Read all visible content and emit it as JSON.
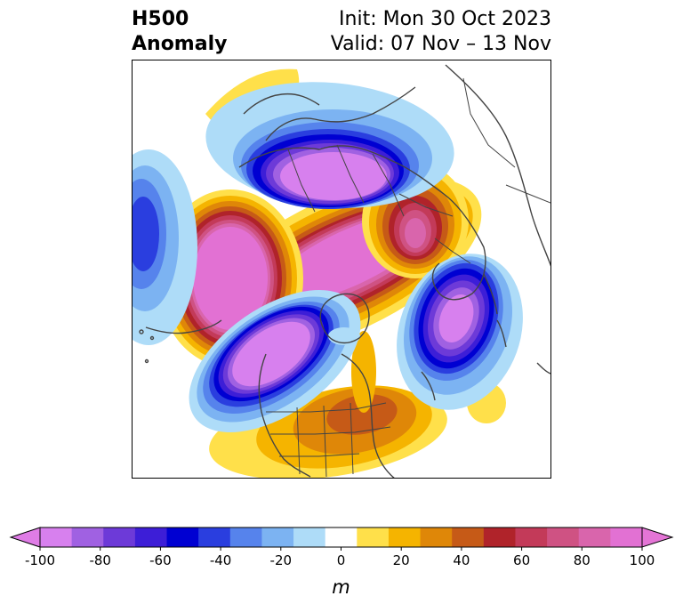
{
  "title": {
    "line1": "H500",
    "line2": "Anomaly",
    "init": "Init: Mon 30 Oct 2023",
    "valid": "Valid: 07 Nov – 13 Nov"
  },
  "colorbar": {
    "units": "m",
    "ticks": [
      "-100",
      "-80",
      "-60",
      "-40",
      "-20",
      "0",
      "20",
      "40",
      "60",
      "80",
      "100"
    ],
    "colors": [
      "#d780ee",
      "#a061e2",
      "#6d3ad8",
      "#3d1ed7",
      "#0000d2",
      "#2a3edf",
      "#5683ec",
      "#7cb3f2",
      "#aedcf8",
      "#ffffff",
      "#ffe04a",
      "#f5b400",
      "#df8708",
      "#c65a17",
      "#b0232a",
      "#c33a59",
      "#cf5283",
      "#d965ac",
      "#e271d3"
    ],
    "lower_extend_color": "#df7ce6",
    "upper_extend_color": "#e475d6"
  },
  "anomaly_centers": [
    {
      "region": "Central Arctic / Siberia",
      "sign": "positive",
      "peak_m": 100
    },
    {
      "region": "Northeast Pacific / Aleutians",
      "sign": "positive",
      "peak_m": 100
    },
    {
      "region": "Northern Europe / Scandinavia",
      "sign": "negative",
      "peak_m": -100
    },
    {
      "region": "Western North America",
      "sign": "negative",
      "peak_m": -100
    },
    {
      "region": "North Atlantic",
      "sign": "negative",
      "peak_m": -100
    },
    {
      "region": "Eastern Russia",
      "sign": "positive",
      "peak_m": 60
    },
    {
      "region": "Central / Eastern United States",
      "sign": "positive",
      "peak_m": 60
    }
  ]
}
